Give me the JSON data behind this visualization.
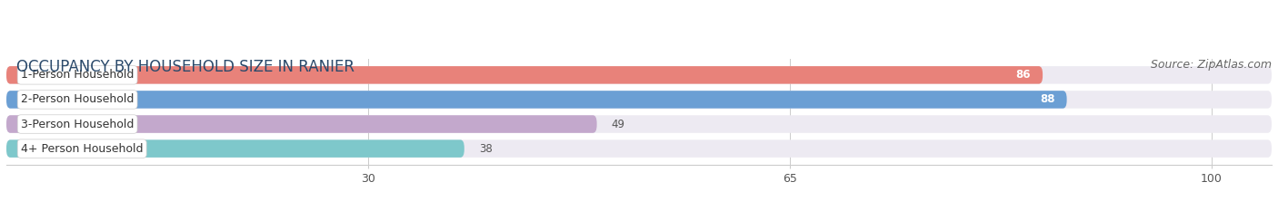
{
  "title": "OCCUPANCY BY HOUSEHOLD SIZE IN RANIER",
  "source": "Source: ZipAtlas.com",
  "categories": [
    "1-Person Household",
    "2-Person Household",
    "3-Person Household",
    "4+ Person Household"
  ],
  "values": [
    86,
    88,
    49,
    38
  ],
  "bar_colors": [
    "#E8827A",
    "#6B9FD4",
    "#C3A8CC",
    "#7EC8CB"
  ],
  "bg_bar_color": "#EDEAF2",
  "x_ticks": [
    30,
    65,
    100
  ],
  "xlim_max": 105,
  "title_fontsize": 12,
  "source_fontsize": 9,
  "bar_label_fontsize": 8.5,
  "cat_label_fontsize": 9,
  "tick_fontsize": 9,
  "bar_height": 0.72,
  "value_label_color_inside": "#FFFFFF",
  "value_label_color_outside": "#555555",
  "title_color": "#2B4A6B",
  "source_color": "#666666"
}
